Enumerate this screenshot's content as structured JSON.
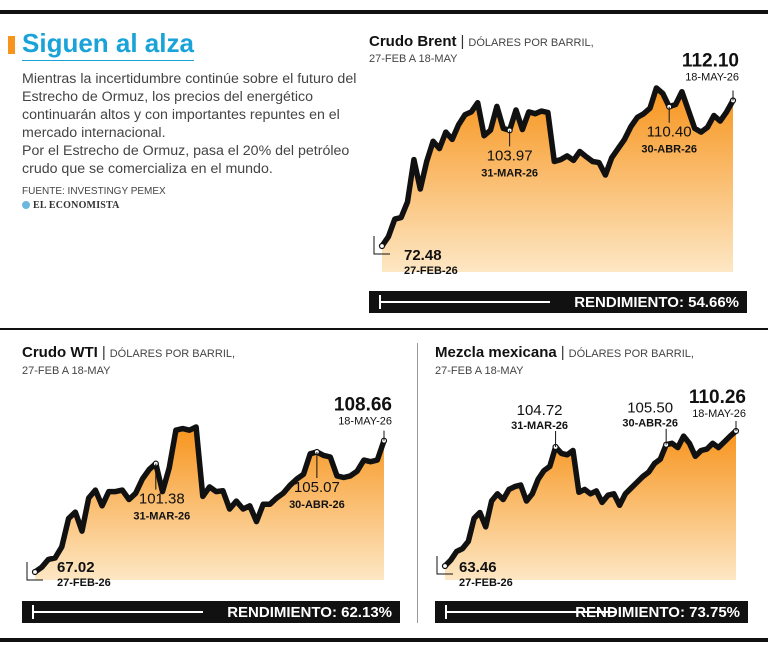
{
  "header": {
    "title": "Siguen al alza",
    "paragraph1": "Mientras la incertidumbre continúe sobre el futuro del Estrecho de Ormuz, los precios del energético continuarán altos y con importantes repuntes en el mercado internacional.",
    "paragraph2": "Por el Estrecho de Ormuz, pasa el 20% del petróleo crudo que se comercializa en el mundo.",
    "source": "FUENTE: INVESTINGY PEMEX",
    "logo": "EL ECONOMISTA"
  },
  "colors": {
    "accent": "#1aa3d9",
    "fill_top": "#f7941d",
    "fill_bottom": "#fde7c4",
    "line": "#111111",
    "bar": "#111111"
  },
  "chart_data": [
    {
      "type": "area",
      "name": "Crudo Brent",
      "unit": "DÓLARES POR BARRIL,",
      "period": "27-FEB A 18-MAY",
      "performance_label": "RENDIMIENTO:",
      "performance": "54.66%",
      "values": [
        72.48,
        75.0,
        79.8,
        80.2,
        84.5,
        96.0,
        88.0,
        95.5,
        101.0,
        99.0,
        103.5,
        101.5,
        105.5,
        108.2,
        109.0,
        111.5,
        102.5,
        104.0,
        110.5,
        104.5,
        103.97,
        109.5,
        104.2,
        109.0,
        108.5,
        109.2,
        108.8,
        95.5,
        96.0,
        97.0,
        95.8,
        98.2,
        96.8,
        95.5,
        95.2,
        91.8,
        96.5,
        99.0,
        101.5,
        105.0,
        107.5,
        108.5,
        110.0,
        115.5,
        114.0,
        110.4,
        111.0,
        114.5,
        109.5,
        104.5,
        103.5,
        104.8,
        108.0,
        106.5,
        109.0,
        112.1
      ],
      "annotations": [
        {
          "index": 0,
          "value": "72.48",
          "date": "27-FEB-26"
        },
        {
          "index": 20,
          "value": "103.97",
          "date": "31-MAR-26"
        },
        {
          "index": 45,
          "value": "110.40",
          "date": "30-ABR-26"
        },
        {
          "index": 55,
          "value": "112.10",
          "date": "18-MAY-26"
        }
      ]
    },
    {
      "type": "area",
      "name": "Crudo WTI",
      "unit": "DÓLARES POR BARRIL,",
      "period": "27-FEB A 18-MAY",
      "performance_label": "RENDIMIENTO:",
      "performance": "62.13%",
      "values": [
        67.02,
        68.5,
        71.0,
        71.5,
        75.0,
        84.0,
        86.0,
        80.0,
        90.5,
        93.0,
        88.0,
        92.5,
        92.5,
        93.0,
        90.0,
        92.0,
        96.5,
        99.5,
        101.38,
        92.5,
        100.0,
        112.0,
        112.5,
        112.0,
        113.0,
        91.0,
        94.0,
        92.5,
        92.8,
        87.0,
        89.5,
        87.0,
        88.0,
        83.0,
        88.5,
        88.5,
        90.5,
        92.0,
        94.5,
        96.5,
        98.0,
        104.5,
        105.07,
        104.0,
        103.5,
        97.5,
        97.0,
        97.5,
        99.0,
        102.5,
        102.0,
        102.5,
        108.66
      ],
      "annotations": [
        {
          "index": 0,
          "value": "67.02",
          "date": "27-FEB-26"
        },
        {
          "index": 18,
          "value": "101.38",
          "date": "31-MAR-26"
        },
        {
          "index": 42,
          "value": "105.07",
          "date": "30-ABR-26"
        },
        {
          "index": 52,
          "value": "108.66",
          "date": "18-MAY-26"
        }
      ]
    },
    {
      "type": "area",
      "name": "Mezcla mexicana",
      "unit": "DÓLARES POR BARRIL,",
      "period": "27-FEB A 18-MAY",
      "performance_label": "RENDIMIENTO:",
      "performance": "73.75%",
      "values": [
        63.46,
        65.5,
        68.5,
        69.5,
        72.0,
        80.0,
        82.0,
        77.0,
        86.0,
        88.5,
        86.5,
        90.0,
        91.0,
        91.5,
        86.0,
        88.5,
        93.5,
        96.5,
        98.0,
        104.72,
        102.5,
        102.0,
        103.5,
        89.0,
        90.0,
        88.5,
        89.5,
        85.5,
        88.0,
        88.5,
        84.5,
        88.5,
        90.5,
        92.5,
        94.5,
        96.0,
        99.0,
        100.5,
        105.5,
        106.0,
        104.5,
        108.5,
        106.0,
        101.5,
        103.5,
        104.0,
        106.0,
        104.5,
        106.5,
        108.5,
        110.26
      ],
      "annotations": [
        {
          "index": 0,
          "value": "63.46",
          "date": "27-FEB-26"
        },
        {
          "index": 19,
          "value": "104.72",
          "date": "31-MAR-26"
        },
        {
          "index": 38,
          "value": "105.50",
          "date": "30-ABR-26"
        },
        {
          "index": 50,
          "value": "110.26",
          "date": "18-MAY-26"
        }
      ]
    }
  ]
}
